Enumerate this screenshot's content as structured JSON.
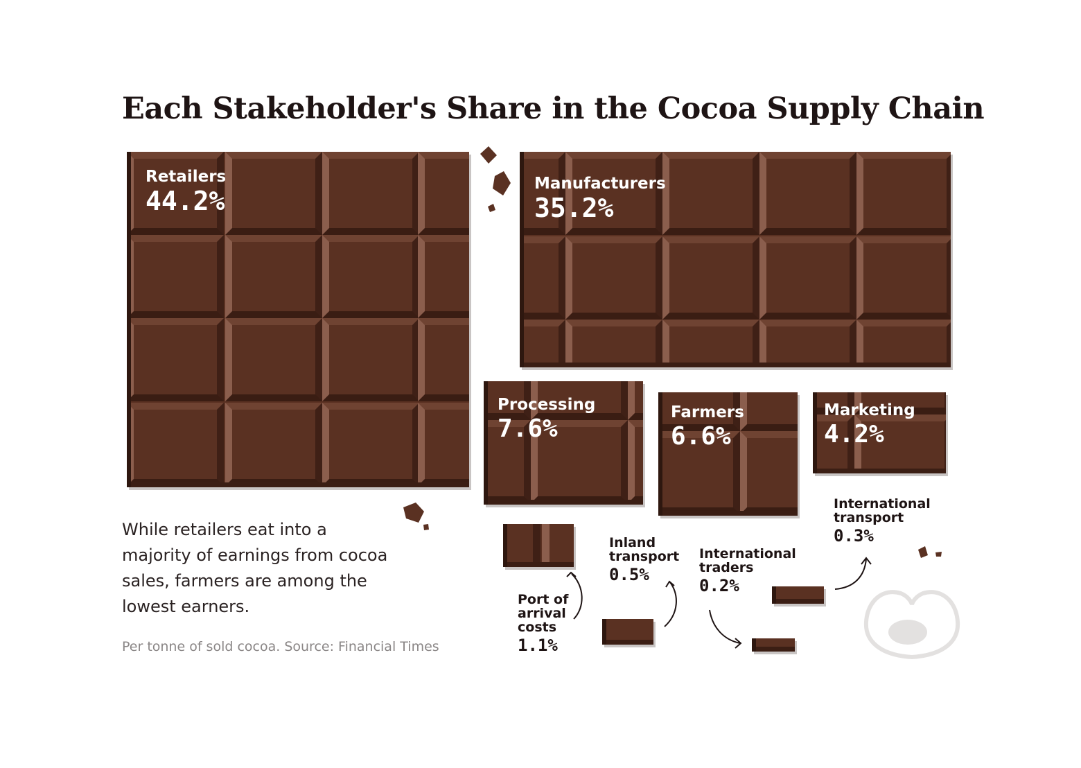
{
  "chart_data": {
    "type": "treemap",
    "title": "Each Stakeholder's Share in the Cocoa Supply Chain",
    "unit": "%",
    "items": [
      {
        "name": "Retailers",
        "value": 44.2,
        "label": "44.2%"
      },
      {
        "name": "Manufacturers",
        "value": 35.2,
        "label": "35.2%"
      },
      {
        "name": "Processing",
        "value": 7.6,
        "label": "7.6%"
      },
      {
        "name": "Farmers",
        "value": 6.6,
        "label": "6.6%"
      },
      {
        "name": "Marketing",
        "value": 4.2,
        "label": "4.2%"
      },
      {
        "name": "Port of arrival costs",
        "value": 1.1,
        "label": "1.1%"
      },
      {
        "name": "Inland transport",
        "value": 0.5,
        "label": "0.5%"
      },
      {
        "name": "International traders",
        "value": 0.2,
        "label": "0.2%"
      },
      {
        "name": "International transport",
        "value": 0.3,
        "label": "0.3%"
      }
    ]
  },
  "text": {
    "subtitle": "While retailers eat into a majority of earnings from cocoa sales, farmers are among the lowest earners.",
    "source": "Per tonne of sold cocoa. Source: Financial Times"
  },
  "colors": {
    "chocolate": "#5a3122",
    "chocolate_dark": "#2e170f",
    "title": "#1e1414",
    "source": "#8a8686"
  },
  "icons": {
    "logo": "visual-capitalist-logo",
    "crumbs": "chocolate-crumb-icon",
    "arrows": "curved-arrow-icon"
  }
}
